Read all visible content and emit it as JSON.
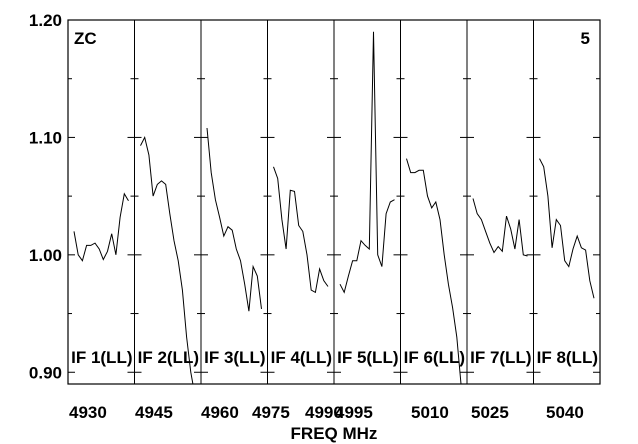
{
  "chart_data": {
    "type": "line",
    "xlabel": "FREQ MHz",
    "corner_left": "ZC",
    "corner_right": "5",
    "ylim": [
      0.89,
      1.2
    ],
    "y_ticks": [
      "1.20",
      "1.10",
      "1.00",
      "0.90"
    ],
    "y_tick_values": [
      1.2,
      1.1,
      1.0,
      0.9
    ],
    "x_tick_labels": [
      "4930",
      "4945",
      "4960",
      "4975",
      "4990",
      "4995",
      "5010",
      "5025",
      "5040"
    ],
    "panel_freq_range": [
      [
        4930,
        4960
      ],
      [
        4945,
        4975
      ],
      [
        4960,
        4990
      ],
      [
        4975,
        5005
      ],
      [
        4990,
        5020
      ],
      [
        5005,
        5035
      ],
      [
        5020,
        5050
      ],
      [
        5035,
        5065
      ]
    ],
    "series": [
      {
        "name": "IF 1(LL)",
        "values": [
          1.02,
          1.0,
          0.995,
          1.008,
          1.008,
          1.01,
          1.005,
          0.996,
          1.003,
          1.018,
          1.0,
          1.032,
          1.052,
          1.046
        ]
      },
      {
        "name": "IF 2(LL)",
        "values": [
          1.093,
          1.1,
          1.085,
          1.05,
          1.06,
          1.063,
          1.06,
          1.035,
          1.012,
          0.995,
          0.97,
          0.93,
          0.9,
          0.88
        ]
      },
      {
        "name": "IF 3(LL)",
        "values": [
          1.108,
          1.07,
          1.047,
          1.032,
          1.016,
          1.024,
          1.021,
          1.005,
          0.995,
          0.975,
          0.952,
          0.99,
          0.982,
          0.954
        ]
      },
      {
        "name": "IF 4(LL)",
        "values": [
          1.075,
          1.065,
          1.03,
          1.005,
          1.055,
          1.054,
          1.025,
          1.02,
          1.0,
          0.97,
          0.968,
          0.988,
          0.978,
          0.973
        ]
      },
      {
        "name": "IF 5(LL)",
        "values": [
          0.975,
          0.968,
          0.982,
          0.995,
          0.995,
          1.012,
          1.008,
          1.005,
          1.19,
          1.0,
          0.99,
          1.035,
          1.045,
          1.047
        ]
      },
      {
        "name": "IF 6(LL)",
        "values": [
          1.082,
          1.07,
          1.07,
          1.072,
          1.072,
          1.05,
          1.04,
          1.045,
          1.03,
          1.0,
          0.975,
          0.955,
          0.93,
          0.89
        ]
      },
      {
        "name": "IF 7(LL)",
        "values": [
          1.048,
          1.035,
          1.03,
          1.02,
          1.01,
          1.002,
          1.007,
          1.003,
          1.033,
          1.022,
          1.005,
          1.03,
          1.0,
          0.999
        ]
      },
      {
        "name": "IF 8(LL)",
        "values": [
          1.082,
          1.075,
          1.05,
          1.006,
          1.03,
          1.025,
          0.995,
          0.99,
          1.005,
          1.016,
          1.006,
          1.004,
          0.978,
          0.963
        ]
      }
    ],
    "grid": false,
    "legend": "none"
  }
}
